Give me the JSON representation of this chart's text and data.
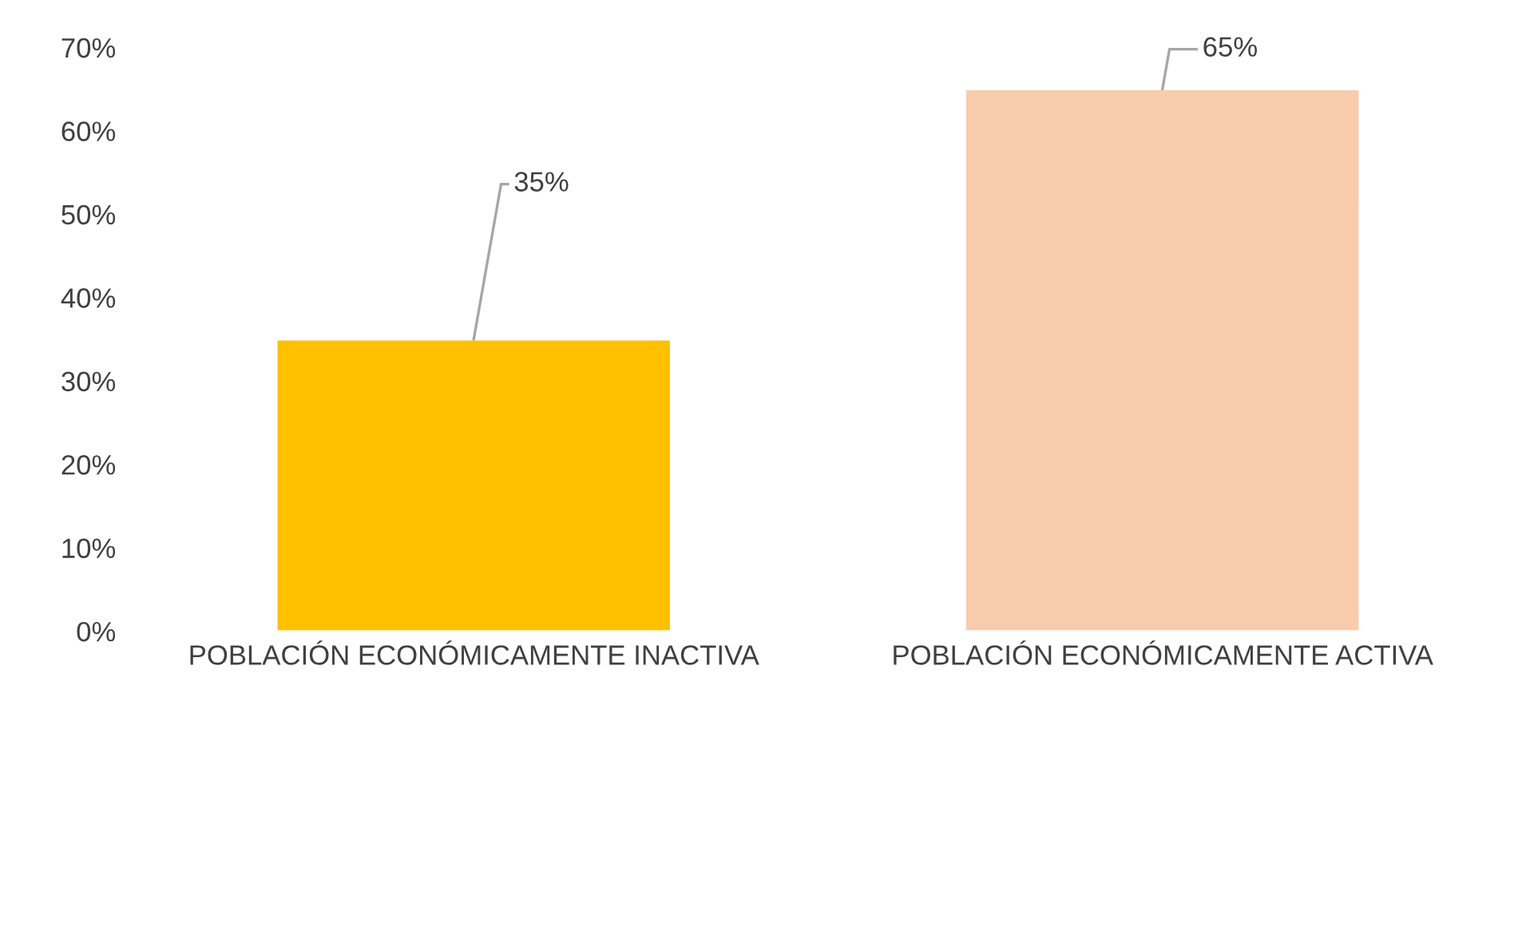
{
  "chart_data": {
    "type": "bar",
    "categories": [
      "POBLACIÓN ECONÓMICAMENTE INACTIVA",
      "POBLACIÓN ECONÓMICAMENTE ACTIVA"
    ],
    "values": [
      35,
      65
    ],
    "colors": [
      "#ffc000",
      "#f8cbad"
    ],
    "value_labels": [
      "35%",
      "65%"
    ],
    "ylim": [
      0,
      70
    ],
    "yticks": [
      {
        "value": 0,
        "label": "0%"
      },
      {
        "value": 10,
        "label": "10%"
      },
      {
        "value": 20,
        "label": "20%"
      },
      {
        "value": 30,
        "label": "30%"
      },
      {
        "value": 40,
        "label": "40%"
      },
      {
        "value": 50,
        "label": "50%"
      },
      {
        "value": 60,
        "label": "60%"
      },
      {
        "value": 70,
        "label": "70%"
      }
    ],
    "grid": false,
    "legend": false
  }
}
